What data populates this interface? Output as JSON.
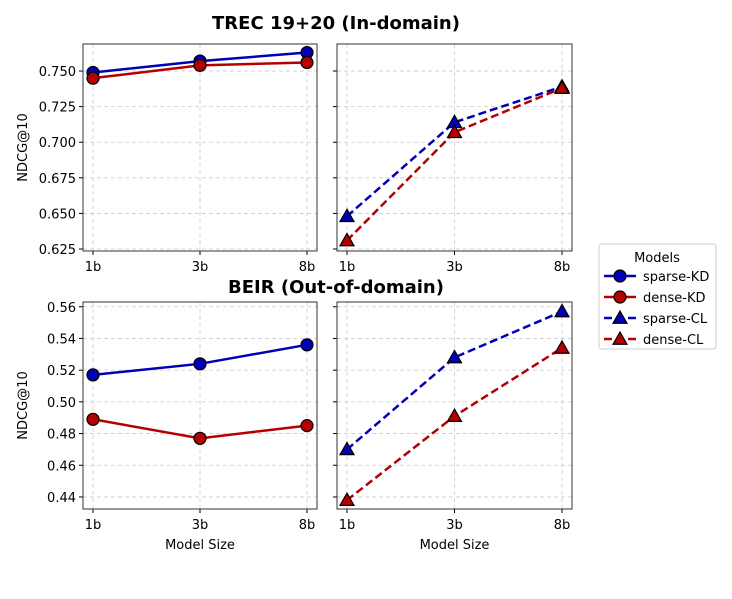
{
  "chart_data": [
    {
      "type": "line",
      "title": "TREC 19+20 (In-domain)",
      "xlabel": "",
      "ylabel": "NDCG@10",
      "categories": [
        "1b",
        "3b",
        "8b"
      ],
      "ylim": [
        0.6236,
        0.769
      ],
      "yticks": [
        "0.625",
        "0.650",
        "0.675",
        "0.700",
        "0.725",
        "0.750"
      ],
      "grid": true,
      "panels": [
        {
          "series": [
            {
              "name": "sparse-KD",
              "values": [
                0.749,
                0.757,
                0.763
              ],
              "color": "#0000b4",
              "marker": "circle",
              "dash": false
            },
            {
              "name": "dense-KD",
              "values": [
                0.745,
                0.754,
                0.756
              ],
              "color": "#b40000",
              "marker": "circle",
              "dash": false
            }
          ]
        },
        {
          "series": [
            {
              "name": "sparse-CL",
              "values": [
                0.648,
                0.714,
                0.739
              ],
              "color": "#0000b4",
              "marker": "triangle",
              "dash": true
            },
            {
              "name": "dense-CL",
              "values": [
                0.631,
                0.707,
                0.738
              ],
              "color": "#b40000",
              "marker": "triangle",
              "dash": true
            }
          ]
        }
      ]
    },
    {
      "type": "line",
      "title": "BEIR (Out-of-domain)",
      "xlabel": "Model Size",
      "ylabel": "NDCG@10",
      "categories": [
        "1b",
        "3b",
        "8b"
      ],
      "ylim": [
        0.4324,
        0.563
      ],
      "yticks": [
        "0.44",
        "0.46",
        "0.48",
        "0.50",
        "0.52",
        "0.54",
        "0.56"
      ],
      "grid": true,
      "panels": [
        {
          "series": [
            {
              "name": "sparse-KD",
              "values": [
                0.517,
                0.524,
                0.536
              ],
              "color": "#0000b4",
              "marker": "circle",
              "dash": false
            },
            {
              "name": "dense-KD",
              "values": [
                0.489,
                0.477,
                0.485
              ],
              "color": "#b40000",
              "marker": "circle",
              "dash": false
            }
          ]
        },
        {
          "series": [
            {
              "name": "sparse-CL",
              "values": [
                0.47,
                0.528,
                0.557
              ],
              "color": "#0000b4",
              "marker": "triangle",
              "dash": true
            },
            {
              "name": "dense-CL",
              "values": [
                0.438,
                0.491,
                0.534
              ],
              "color": "#b40000",
              "marker": "triangle",
              "dash": true
            }
          ]
        }
      ]
    }
  ],
  "legend": {
    "title": "Models",
    "placement": "right",
    "entries": [
      {
        "label": "sparse-KD",
        "color": "#0000b4",
        "marker": "circle",
        "dash": false
      },
      {
        "label": "dense-KD",
        "color": "#b40000",
        "marker": "circle",
        "dash": false
      },
      {
        "label": "sparse-CL",
        "color": "#0000b4",
        "marker": "triangle",
        "dash": true
      },
      {
        "label": "dense-CL",
        "color": "#b40000",
        "marker": "triangle",
        "dash": true
      }
    ]
  }
}
